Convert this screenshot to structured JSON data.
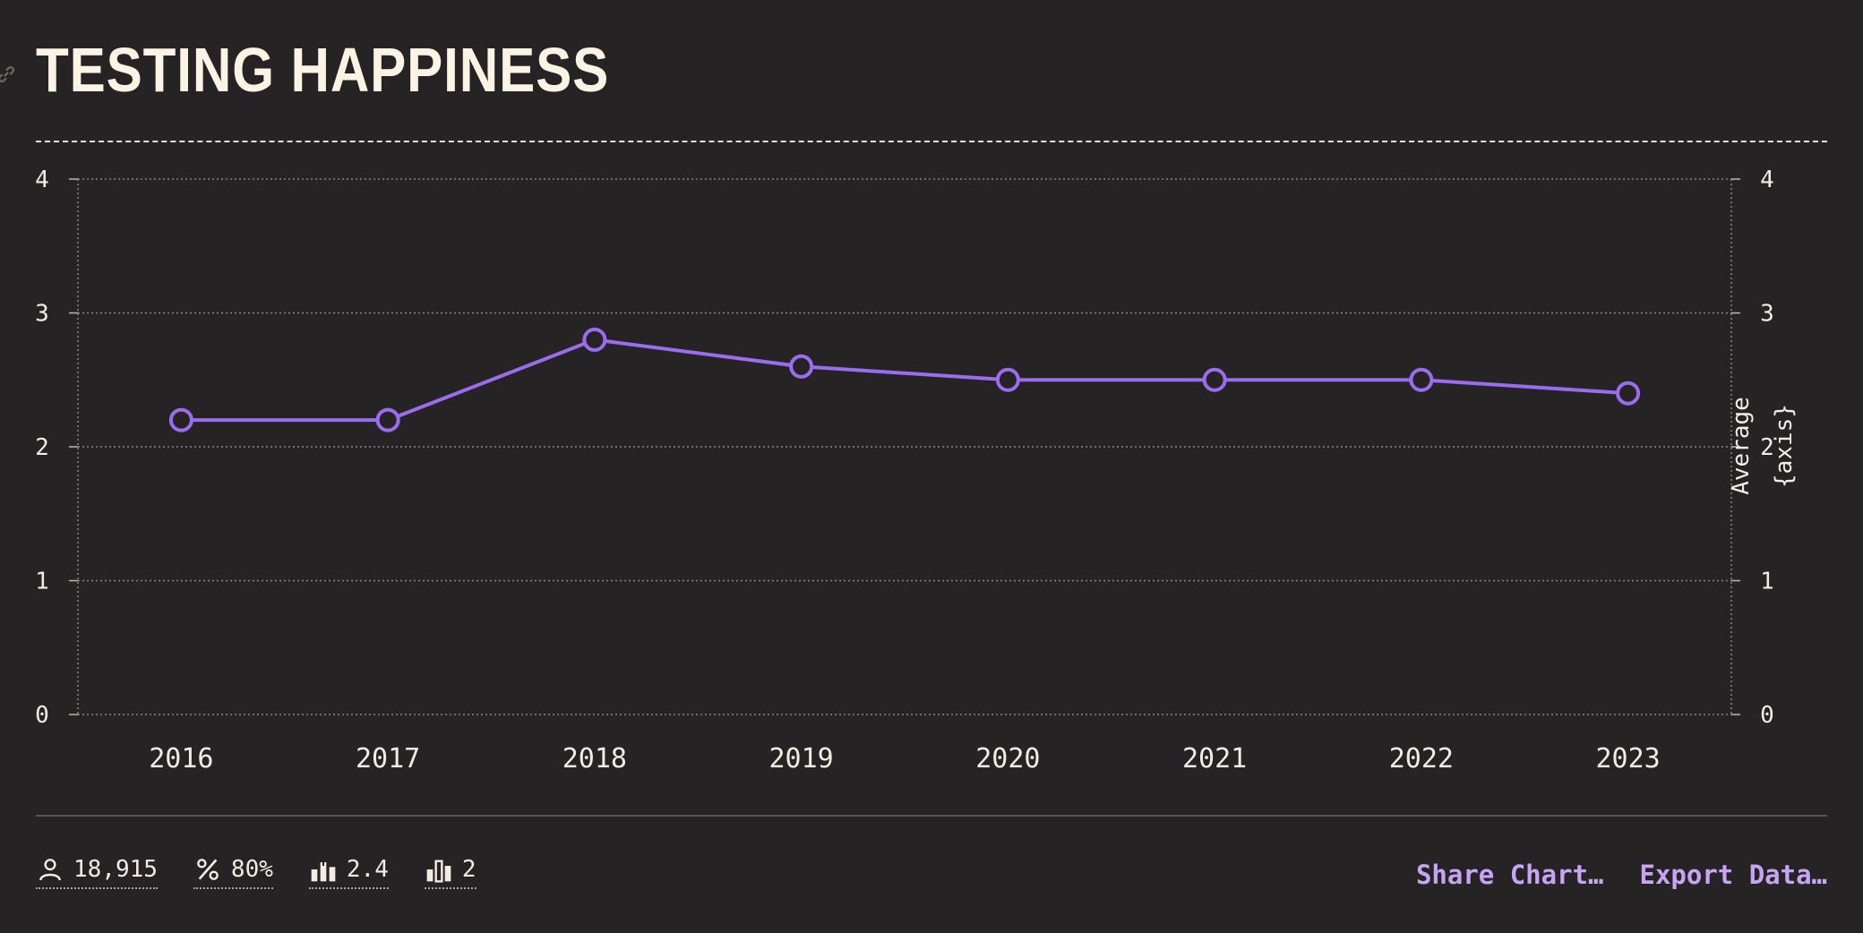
{
  "header": {
    "title": "TESTING HAPPINESS",
    "link_icon": "link-icon"
  },
  "colors": {
    "background": "#262324",
    "series": "#9c6cf0",
    "accent_text": "#c7a4f4",
    "title": "#fbf3e4"
  },
  "chart_data": {
    "type": "line",
    "title": "TESTING HAPPINESS",
    "x": [
      "2016",
      "2017",
      "2018",
      "2019",
      "2020",
      "2021",
      "2022",
      "2023"
    ],
    "series": [
      {
        "values": [
          2.2,
          2.2,
          2.8,
          2.6,
          2.5,
          2.5,
          2.5,
          2.4
        ]
      }
    ],
    "ylim": [
      0,
      4
    ],
    "yticks": [
      "0",
      "1",
      "2",
      "3",
      "4"
    ],
    "y_right_label": "Average {axis}",
    "grid": true,
    "markers": "hollow-circle"
  },
  "footer": {
    "stats": [
      {
        "icon": "user-icon",
        "value": "18,915"
      },
      {
        "icon": "percent-icon",
        "value": "80%"
      },
      {
        "icon": "average-bars-icon",
        "value": "2.4"
      },
      {
        "icon": "median-bars-icon",
        "value": "2"
      }
    ],
    "actions": {
      "share": "Share Chart…",
      "export": "Export Data…"
    }
  }
}
